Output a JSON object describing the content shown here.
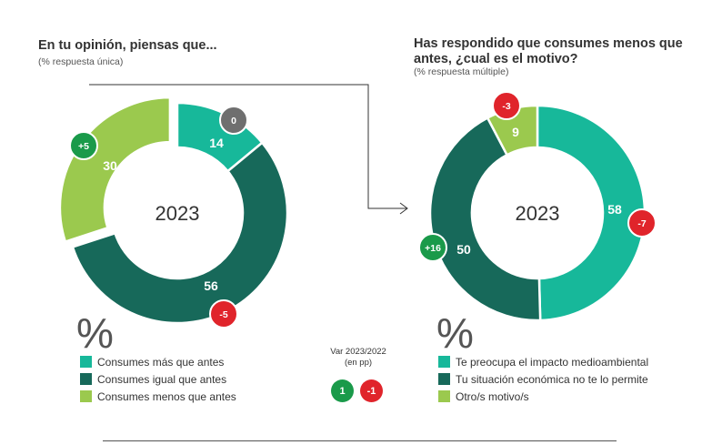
{
  "colors": {
    "teal": "#17b89a",
    "dark_green": "#17695a",
    "light_green": "#9bc94e",
    "grey": "#6f6f6f",
    "positive": "#1a9a4a",
    "negative": "#e0242b",
    "text": "#333333"
  },
  "chart_data": [
    {
      "type": "pie",
      "variant": "donut",
      "title": "En tu opinión, piensas que...",
      "subtitle": "(% respuesta única)",
      "center_label": "2023",
      "unit_symbol": "%",
      "slices": [
        {
          "label": "Consumes más que antes",
          "value": 14,
          "color": "#17b89a",
          "change": "0",
          "change_color": "#6f6f6f"
        },
        {
          "label": "Consumes igual que antes",
          "value": 56,
          "color": "#17695a",
          "change": "-5",
          "change_color": "#e0242b"
        },
        {
          "label": "Consumes menos que antes",
          "value": 30,
          "color": "#9bc94e",
          "change": "+5",
          "change_color": "#1a9a4a"
        }
      ]
    },
    {
      "type": "pie",
      "variant": "donut",
      "title": "Has respondido que consumes menos que antes, ¿cual es el motivo?",
      "subtitle": "(% respuesta múltiple)",
      "center_label": "2023",
      "unit_symbol": "%",
      "slices": [
        {
          "label": "Te preocupa el impacto medioambiental",
          "value": 58,
          "color": "#17b89a",
          "change": "-7",
          "change_color": "#e0242b"
        },
        {
          "label": "Tu situación económica no te lo permite",
          "value": 50,
          "color": "#17695a",
          "change": "+16",
          "change_color": "#1a9a4a"
        },
        {
          "label": "Otro/s motivo/s",
          "value": 9,
          "color": "#9bc94e",
          "change": "-3",
          "change_color": "#e0242b"
        }
      ]
    }
  ],
  "variation_legend": {
    "label": "Var 2023/2022 (en pp)",
    "positive_example": "1",
    "negative_example": "-1"
  }
}
